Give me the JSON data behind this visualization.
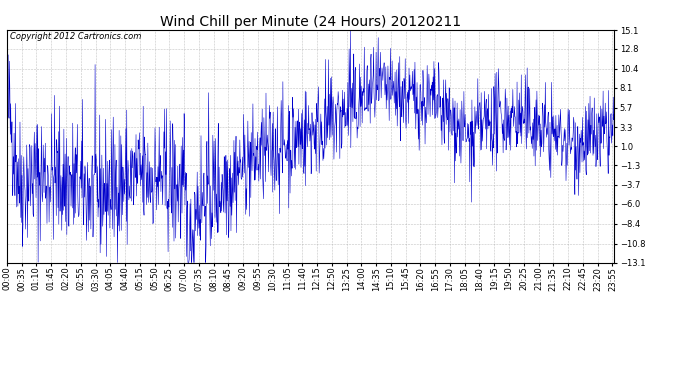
{
  "title": "Wind Chill per Minute (24 Hours) 20120211",
  "copyright_text": "Copyright 2012 Cartronics.com",
  "line_color": "#0000cc",
  "background_color": "#ffffff",
  "grid_color": "#aaaaaa",
  "yticks": [
    15.1,
    12.8,
    10.4,
    8.1,
    5.7,
    3.3,
    1.0,
    -1.3,
    -3.7,
    -6.0,
    -8.4,
    -10.8,
    -13.1
  ],
  "ylim": [
    -13.1,
    15.1
  ],
  "n_minutes": 1440,
  "seed": 42,
  "xtick_interval": 35,
  "title_fontsize": 10,
  "copyright_fontsize": 6,
  "tick_label_fontsize": 6
}
